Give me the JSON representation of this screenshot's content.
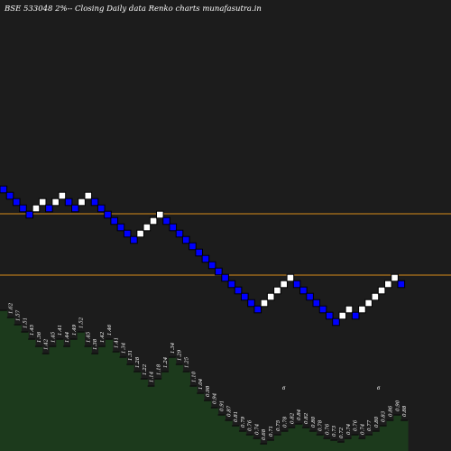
{
  "chart_data": {
    "type": "renko",
    "title": "BSE 533048  2%-- Closing Daily data Renko  charts munafasutra.in",
    "colors": {
      "background": "#1c1c1c",
      "up_brick": "#ffffff",
      "down_brick": "#0000ff",
      "brick_border": "#000000",
      "hline": "#d98c1a",
      "volume_fill": "#1c3a1c",
      "volume_edge": "#0f0f0f"
    },
    "ylim": [
      0,
      500
    ],
    "hlines": [
      263,
      195
    ],
    "bricks": [
      {
        "dir": "down",
        "price": 290
      },
      {
        "dir": "down",
        "price": 283
      },
      {
        "dir": "down",
        "price": 276
      },
      {
        "dir": "down",
        "price": 269
      },
      {
        "dir": "down",
        "price": 262
      },
      {
        "dir": "up",
        "price": 269
      },
      {
        "dir": "up",
        "price": 276
      },
      {
        "dir": "down",
        "price": 269
      },
      {
        "dir": "up",
        "price": 276
      },
      {
        "dir": "up",
        "price": 283
      },
      {
        "dir": "down",
        "price": 276
      },
      {
        "dir": "down",
        "price": 269
      },
      {
        "dir": "up",
        "price": 276
      },
      {
        "dir": "up",
        "price": 283
      },
      {
        "dir": "down",
        "price": 276
      },
      {
        "dir": "down",
        "price": 269
      },
      {
        "dir": "down",
        "price": 262
      },
      {
        "dir": "down",
        "price": 255
      },
      {
        "dir": "down",
        "price": 248
      },
      {
        "dir": "down",
        "price": 241
      },
      {
        "dir": "down",
        "price": 234
      },
      {
        "dir": "up",
        "price": 241
      },
      {
        "dir": "up",
        "price": 248
      },
      {
        "dir": "up",
        "price": 255
      },
      {
        "dir": "up",
        "price": 262
      },
      {
        "dir": "down",
        "price": 255
      },
      {
        "dir": "down",
        "price": 248
      },
      {
        "dir": "down",
        "price": 241
      },
      {
        "dir": "down",
        "price": 234
      },
      {
        "dir": "down",
        "price": 227
      },
      {
        "dir": "down",
        "price": 220
      },
      {
        "dir": "down",
        "price": 213
      },
      {
        "dir": "down",
        "price": 206
      },
      {
        "dir": "down",
        "price": 199
      },
      {
        "dir": "down",
        "price": 192
      },
      {
        "dir": "down",
        "price": 185
      },
      {
        "dir": "down",
        "price": 178
      },
      {
        "dir": "down",
        "price": 171
      },
      {
        "dir": "down",
        "price": 164
      },
      {
        "dir": "down",
        "price": 157
      },
      {
        "dir": "up",
        "price": 164
      },
      {
        "dir": "up",
        "price": 171
      },
      {
        "dir": "up",
        "price": 178
      },
      {
        "dir": "up",
        "price": 185
      },
      {
        "dir": "up",
        "price": 192
      },
      {
        "dir": "down",
        "price": 185
      },
      {
        "dir": "down",
        "price": 178
      },
      {
        "dir": "down",
        "price": 171
      },
      {
        "dir": "down",
        "price": 164
      },
      {
        "dir": "down",
        "price": 157
      },
      {
        "dir": "down",
        "price": 150
      },
      {
        "dir": "down",
        "price": 143
      },
      {
        "dir": "up",
        "price": 150
      },
      {
        "dir": "up",
        "price": 157
      },
      {
        "dir": "down",
        "price": 150
      },
      {
        "dir": "up",
        "price": 157
      },
      {
        "dir": "up",
        "price": 164
      },
      {
        "dir": "up",
        "price": 171
      },
      {
        "dir": "up",
        "price": 178
      },
      {
        "dir": "up",
        "price": 185
      },
      {
        "dir": "up",
        "price": 192
      },
      {
        "dir": "down",
        "price": 185
      }
    ],
    "volume_bars": [
      {
        "height": 156,
        "label": ""
      },
      {
        "height": 148,
        "label": "1.62"
      },
      {
        "height": 140,
        "label": "1.57"
      },
      {
        "height": 132,
        "label": "1.51"
      },
      {
        "height": 124,
        "label": "1.45"
      },
      {
        "height": 116,
        "label": "1.36"
      },
      {
        "height": 108,
        "label": "1.42"
      },
      {
        "height": 116,
        "label": "1.45"
      },
      {
        "height": 124,
        "label": "1.41"
      },
      {
        "height": 116,
        "label": "1.44"
      },
      {
        "height": 124,
        "label": "1.49"
      },
      {
        "height": 132,
        "label": "1.52"
      },
      {
        "height": 116,
        "label": "1.45"
      },
      {
        "height": 108,
        "label": "1.38"
      },
      {
        "height": 116,
        "label": "1.42"
      },
      {
        "height": 124,
        "label": "1.46"
      },
      {
        "height": 110,
        "label": "1.41"
      },
      {
        "height": 104,
        "label": "1.34"
      },
      {
        "height": 96,
        "label": "1.31"
      },
      {
        "height": 88,
        "label": "1.28"
      },
      {
        "height": 80,
        "label": "1.22"
      },
      {
        "height": 72,
        "label": "1.14"
      },
      {
        "height": 80,
        "label": "1.18"
      },
      {
        "height": 88,
        "label": "1.24"
      },
      {
        "height": 104,
        "label": "1.34"
      },
      {
        "height": 96,
        "label": "1.29"
      },
      {
        "height": 88,
        "label": "1.25"
      },
      {
        "height": 72,
        "label": "1.10"
      },
      {
        "height": 64,
        "label": "1.04"
      },
      {
        "height": 56,
        "label": "0.98"
      },
      {
        "height": 48,
        "label": "0.94"
      },
      {
        "height": 40,
        "label": "0.91"
      },
      {
        "height": 34,
        "label": "0.87"
      },
      {
        "height": 28,
        "label": "0.81"
      },
      {
        "height": 22,
        "label": "0.79"
      },
      {
        "height": 18,
        "label": "0.76"
      },
      {
        "height": 14,
        "label": "0.74"
      },
      {
        "height": 8,
        "label": "0.68"
      },
      {
        "height": 12,
        "label": "0.71"
      },
      {
        "height": 18,
        "label": "0.75"
      },
      {
        "height": 22,
        "label": "0.78"
      },
      {
        "height": 26,
        "label": "0.82"
      },
      {
        "height": 30,
        "label": "0.84"
      },
      {
        "height": 26,
        "label": "0.82"
      },
      {
        "height": 22,
        "label": "0.80"
      },
      {
        "height": 18,
        "label": "0.78"
      },
      {
        "height": 14,
        "label": "0.76"
      },
      {
        "height": 12,
        "label": "0.73"
      },
      {
        "height": 10,
        "label": "0.72"
      },
      {
        "height": 14,
        "label": "0.74"
      },
      {
        "height": 18,
        "label": "0.76"
      },
      {
        "height": 14,
        "label": "0.74"
      },
      {
        "height": 18,
        "label": "0.77"
      },
      {
        "height": 22,
        "label": "0.80"
      },
      {
        "height": 28,
        "label": "0.83"
      },
      {
        "height": 34,
        "label": "0.86"
      },
      {
        "height": 40,
        "label": "0.90"
      },
      {
        "height": 34,
        "label": "0.88"
      }
    ],
    "volume_markers": [
      "6",
      "6"
    ]
  }
}
